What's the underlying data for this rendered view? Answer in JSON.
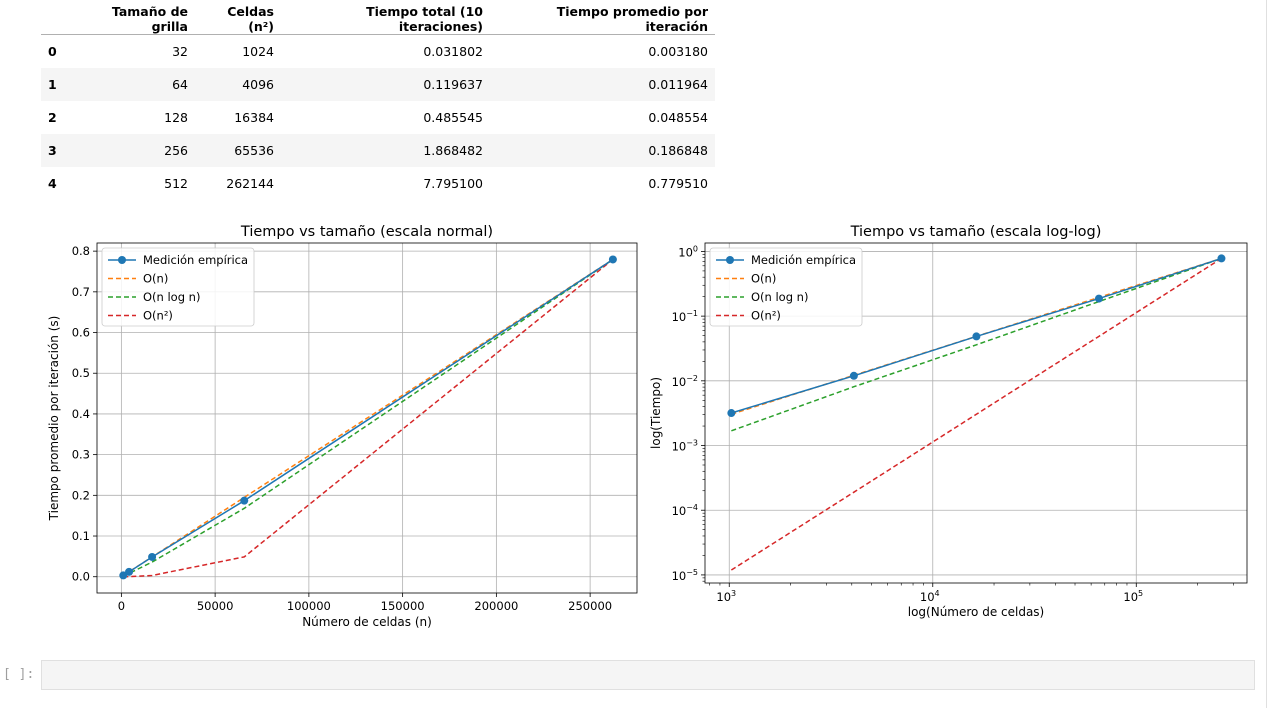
{
  "table": {
    "columns": [
      "Tamaño de grilla",
      "Celdas (n²)",
      "Tiempo total (10 iteraciones)",
      "Tiempo promedio por iteración"
    ],
    "rows": [
      {
        "index": "0",
        "grid": "32",
        "cells": "1024",
        "total": "0.031802",
        "avg": "0.003180"
      },
      {
        "index": "1",
        "grid": "64",
        "cells": "4096",
        "total": "0.119637",
        "avg": "0.011964"
      },
      {
        "index": "2",
        "grid": "128",
        "cells": "16384",
        "total": "0.485545",
        "avg": "0.048554"
      },
      {
        "index": "3",
        "grid": "256",
        "cells": "65536",
        "total": "1.868482",
        "avg": "0.186848"
      },
      {
        "index": "4",
        "grid": "512",
        "cells": "262144",
        "total": "7.795100",
        "avg": "0.779510"
      }
    ]
  },
  "colors": {
    "empirical": "#1f77b4",
    "on": "#ff7f0e",
    "onlogn": "#2ca02c",
    "on2": "#d62728"
  },
  "chart_data": [
    {
      "type": "line",
      "title": "Tiempo vs tamaño (escala normal)",
      "xlabel": "Número de celdas (n)",
      "ylabel": "Tiempo promedio por iteración (s)",
      "xlim": [
        -13000,
        275000
      ],
      "ylim": [
        -0.04,
        0.82
      ],
      "xticks": [
        0,
        50000,
        100000,
        150000,
        200000,
        250000
      ],
      "xtick_labels": [
        "0",
        "50000",
        "100000",
        "150000",
        "200000",
        "250000"
      ],
      "yticks": [
        0,
        0.1,
        0.2,
        0.3,
        0.4,
        0.5,
        0.6,
        0.7,
        0.8
      ],
      "ytick_labels": [
        "0.0",
        "0.1",
        "0.2",
        "0.3",
        "0.4",
        "0.5",
        "0.6",
        "0.7",
        "0.8"
      ],
      "grid": true,
      "legend": "upper-left",
      "x": [
        1024,
        4096,
        16384,
        65536,
        262144
      ],
      "series": [
        {
          "name": "Medición empírica",
          "values": [
            0.00318,
            0.011964,
            0.048554,
            0.186848,
            0.77951
          ],
          "style": "solid-marker"
        },
        {
          "name": "O(n)",
          "values": [
            0.003045,
            0.01218,
            0.04872,
            0.19488,
            0.77951
          ],
          "style": "dashed"
        },
        {
          "name": "O(n log n)",
          "values": [
            0.001688,
            0.008104,
            0.036015,
            0.16809,
            0.77951
          ],
          "style": "dashed"
        },
        {
          "name": "O(n²)",
          "values": [
            1.19e-05,
            0.00019,
            0.003045,
            0.048719,
            0.77951
          ],
          "style": "dashed"
        }
      ]
    },
    {
      "type": "line",
      "title": "Tiempo vs tamaño (escala log-log)",
      "xlabel": "log(Número de celdas)",
      "ylabel": "log(Tiempo)",
      "xscale": "log",
      "yscale": "log",
      "xlim": [
        760,
        350000
      ],
      "ylim": [
        7.5e-06,
        1.35
      ],
      "xticks": [
        1000,
        10000,
        100000
      ],
      "xtick_labels": [
        [
          "10",
          "3"
        ],
        [
          "10",
          "4"
        ],
        [
          "10",
          "5"
        ]
      ],
      "yticks": [
        1e-05,
        0.0001,
        0.001,
        0.01,
        0.1,
        1
      ],
      "ytick_labels": [
        [
          "10",
          "−5"
        ],
        [
          "10",
          "−4"
        ],
        [
          "10",
          "−3"
        ],
        [
          "10",
          "−2"
        ],
        [
          "10",
          "−1"
        ],
        [
          "10",
          "0"
        ]
      ],
      "grid": true,
      "legend": "upper-left",
      "x": [
        1024,
        4096,
        16384,
        65536,
        262144
      ],
      "series": [
        {
          "name": "Medición empírica",
          "values": [
            0.00318,
            0.011964,
            0.048554,
            0.186848,
            0.77951
          ],
          "style": "solid-marker"
        },
        {
          "name": "O(n)",
          "values": [
            0.003045,
            0.01218,
            0.04872,
            0.19488,
            0.77951
          ],
          "style": "dashed"
        },
        {
          "name": "O(n log n)",
          "values": [
            0.001688,
            0.008104,
            0.036015,
            0.16809,
            0.77951
          ],
          "style": "dashed"
        },
        {
          "name": "O(n²)",
          "values": [
            1.19e-05,
            0.00019,
            0.003045,
            0.048719,
            0.77951
          ],
          "style": "dashed"
        }
      ]
    }
  ],
  "input_cell": {
    "prompt": "[ ]:"
  }
}
